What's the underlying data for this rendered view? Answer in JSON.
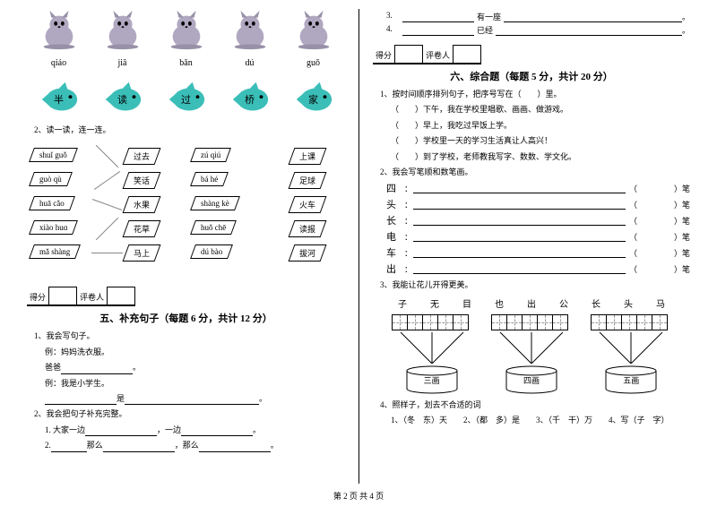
{
  "footer": "第 2 页  共 4 页",
  "left": {
    "pinyin": [
      "qiáo",
      "jiā",
      "bǎn",
      "dú",
      "guǒ"
    ],
    "fish_chars": [
      "半",
      "读",
      "过",
      "桥",
      "家"
    ],
    "q2_title": "2、读一读，连一连。",
    "match": {
      "col1": [
        "shuǐ guǒ",
        "guò qù",
        "huā cǎo",
        "xiào huɑ",
        "mǎ shàng"
      ],
      "col2": [
        "过去",
        "笑话",
        "水果",
        "花草",
        "马上"
      ],
      "col3": [
        "zú qiú",
        "bá hé",
        "shàng kè",
        "huǒ chē",
        "dú bào"
      ],
      "col4": [
        "上课",
        "足球",
        "火车",
        "读报",
        "拔河"
      ]
    },
    "section5": {
      "score_label": "得分",
      "reviewer_label": "评卷人",
      "title": "五、补充句子（每题 6 分，共计 12 分）",
      "q1": "1、我会写句子。",
      "q1_ex": "例：妈妈洗衣服。",
      "q1_blank_label": "爸爸",
      "q1_ex2": "例：我是小学生。",
      "q1_suffix": "是",
      "q2": "2、我会把句子补充完整。",
      "q2_1_pre": "1. 大家一边",
      "q2_1_mid": "，一边",
      "q2_2_pre": "2.",
      "q2_2_mid1": "那么",
      "q2_2_mid2": "，那么"
    }
  },
  "right": {
    "fill3_num": "3.",
    "fill3_mid": "有一座",
    "fill4_num": "4.",
    "fill4_mid": "已经",
    "section6": {
      "score_label": "得分",
      "reviewer_label": "评卷人",
      "title": "六、综合题（每题 5 分，共计 20 分）",
      "q1": "1、按时间顺序排列句子，把序号写在（　　）里。",
      "q1_lines": [
        "（　　）下午，我在学校里唱歌、画画、做游戏。",
        "（　　）早上，我吃过早饭上学。",
        "（　　）学校里一天的学习生活真让人高兴！",
        "（　　）到了学校，老师教我写字、数数、学文化。"
      ],
      "q2": "2、我会写笔顺和数笔画。",
      "q2_chars": [
        "四",
        "头",
        "长",
        "电",
        "车",
        "出"
      ],
      "q2_suffix": "）笔",
      "q3": "3、我能让花儿开得更美。",
      "q3_chars": [
        "子",
        "无",
        "目",
        "也",
        "出",
        "公",
        "长",
        "头",
        "马"
      ],
      "q3_labels": [
        "三画",
        "四画",
        "五画"
      ],
      "q4": "4、照样子，划去不合适的词",
      "q4_text": "1、（冬　东）天　　2、（都　多）是　　3、（千　干）万　　4、写（子　字）"
    }
  }
}
